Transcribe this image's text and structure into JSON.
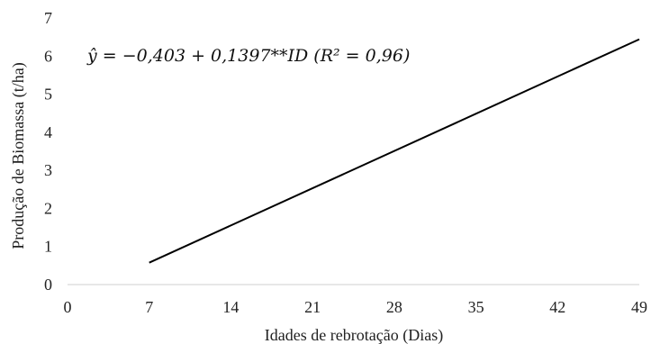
{
  "chart_data": {
    "type": "line",
    "xlabel": "Idades de rebrotação (Dias)",
    "ylabel": "Produção de Biomassa (t/ha)",
    "xlim": [
      0,
      49
    ],
    "ylim": [
      0,
      7
    ],
    "xticks": [
      "0",
      "7",
      "14",
      "21",
      "28",
      "35",
      "42",
      "49"
    ],
    "yticks": [
      "0",
      "1",
      "2",
      "3",
      "4",
      "5",
      "6",
      "7"
    ],
    "series": [
      {
        "x": [
          7,
          49
        ],
        "values": [
          0.575,
          6.442
        ],
        "color": "#000000"
      }
    ],
    "annotation": "ŷ = −0,403 + 0,1397**ID (R² = 0,96)",
    "grid": false
  }
}
